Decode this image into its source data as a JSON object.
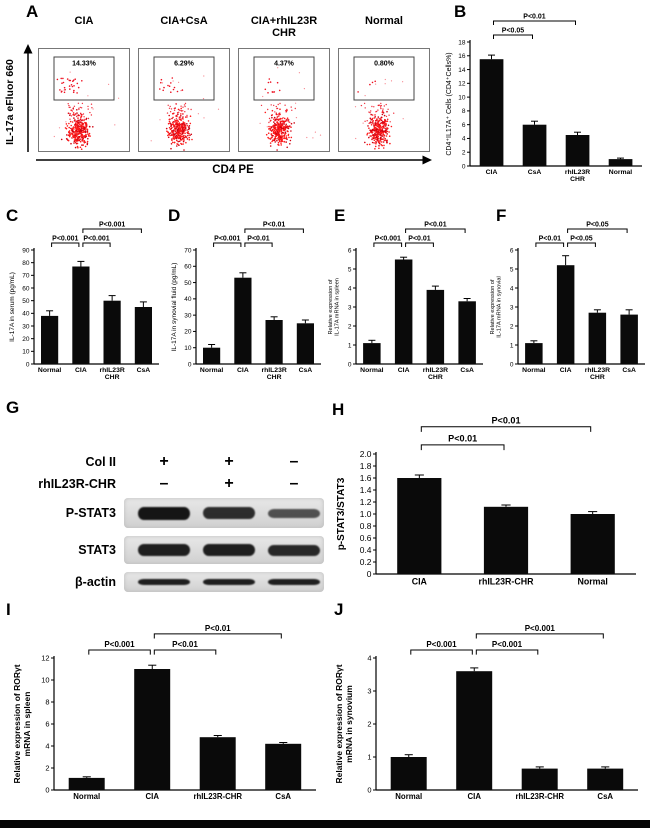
{
  "panel_a": {
    "label": "A",
    "ylabel": "IL-17a eFluor 660",
    "xlabel": "CD4 PE",
    "plots": [
      {
        "title": "CIA",
        "gate_pct": "14.33%",
        "gated_dots": 30
      },
      {
        "title": "CIA+CsA",
        "gate_pct": "6.29%",
        "gated_dots": 14
      },
      {
        "title": "CIA+rhIL23R\nCHR",
        "gate_pct": "4.37%",
        "gated_dots": 10
      },
      {
        "title": "Normal",
        "gate_pct": "0.80%",
        "gated_dots": 4
      }
    ]
  },
  "panel_g": {
    "label": "G",
    "condition_rows": [
      {
        "name": "Col II",
        "values": [
          "+",
          "+",
          "–"
        ]
      },
      {
        "name": "rhIL23R-CHR",
        "values": [
          "–",
          "+",
          "–"
        ]
      }
    ],
    "blots": [
      {
        "name": "P-STAT3",
        "bands": [
          {
            "h": 13,
            "o": 1
          },
          {
            "h": 12,
            "o": 0.88
          },
          {
            "h": 9,
            "o": 0.7
          }
        ]
      },
      {
        "name": "STAT3",
        "bands": [
          {
            "h": 12,
            "o": 0.95
          },
          {
            "h": 12,
            "o": 0.95
          },
          {
            "h": 11,
            "o": 0.9
          }
        ]
      },
      {
        "name": "β-actin",
        "bands": [
          {
            "h": 6,
            "o": 0.95
          },
          {
            "h": 6,
            "o": 0.95
          },
          {
            "h": 6,
            "o": 0.95
          }
        ]
      }
    ]
  },
  "chart_data": [
    {
      "panel": "B",
      "type": "bar",
      "categories": [
        "CIA",
        "CsA",
        "rhIL23R\nCHR",
        "Normal"
      ],
      "values": [
        15.5,
        6.0,
        4.5,
        1.0
      ],
      "errors": [
        0.6,
        0.5,
        0.4,
        0.15
      ],
      "title": "",
      "xlabel": "",
      "ylabel": "CD4⁺IL17A⁺ Cells (CD4⁺Cells%)",
      "ylim": [
        0,
        18
      ],
      "ytick_step": 2,
      "brackets": [
        {
          "from": 0,
          "to": 1,
          "label": "P<0.05",
          "level": 0
        },
        {
          "from": 0,
          "to": 2,
          "label": "P<0.01",
          "level": 1
        }
      ]
    },
    {
      "panel": "C",
      "type": "bar",
      "categories": [
        "Normal",
        "CIA",
        "rhIL23R\nCHR",
        "CsA"
      ],
      "values": [
        38,
        77,
        50,
        45
      ],
      "errors": [
        4,
        4,
        4,
        4
      ],
      "title": "",
      "xlabel": "",
      "ylabel": "IL-17A in serum (pg/mL)",
      "ylim": [
        0,
        90
      ],
      "ytick_step": 10,
      "brackets": [
        {
          "from": 0,
          "to": 1,
          "label": "P<0.001",
          "level": 0
        },
        {
          "from": 1,
          "to": 2,
          "label": "P<0.001",
          "level": 0
        },
        {
          "from": 1,
          "to": 3,
          "label": "P<0.001",
          "level": 1
        }
      ]
    },
    {
      "panel": "D",
      "type": "bar",
      "categories": [
        "Normal",
        "CIA",
        "rhIL23R\nCHR",
        "CsA"
      ],
      "values": [
        10,
        53,
        27,
        25
      ],
      "errors": [
        2,
        3,
        2,
        2
      ],
      "title": "",
      "xlabel": "",
      "ylabel": "IL-17A in synovial fluid (pg/mL)",
      "ylim": [
        0,
        70
      ],
      "ytick_step": 10,
      "brackets": [
        {
          "from": 0,
          "to": 1,
          "label": "P<0.001",
          "level": 0
        },
        {
          "from": 1,
          "to": 2,
          "label": "P<0.01",
          "level": 0
        },
        {
          "from": 1,
          "to": 3,
          "label": "P<0.01",
          "level": 1
        }
      ]
    },
    {
      "panel": "E",
      "type": "bar",
      "categories": [
        "Normal",
        "CIA",
        "rhIL23R\nCHR",
        "CsA"
      ],
      "values": [
        1.1,
        5.5,
        3.9,
        3.3
      ],
      "errors": [
        0.15,
        0.12,
        0.2,
        0.15
      ],
      "title": "",
      "xlabel": "",
      "ylabel": "Relative expression of\nIL-17A mRNA in spleen",
      "ylim": [
        0,
        6
      ],
      "ytick_step": 1,
      "brackets": [
        {
          "from": 0,
          "to": 1,
          "label": "P<0.001",
          "level": 0
        },
        {
          "from": 1,
          "to": 2,
          "label": "P<0.01",
          "level": 0
        },
        {
          "from": 1,
          "to": 3,
          "label": "P<0.01",
          "level": 1
        }
      ]
    },
    {
      "panel": "F",
      "type": "bar",
      "categories": [
        "Normal",
        "CIA",
        "rhIL23R\nCHR",
        "CsA"
      ],
      "values": [
        1.1,
        5.2,
        2.7,
        2.6
      ],
      "errors": [
        0.12,
        0.5,
        0.15,
        0.25
      ],
      "title": "",
      "xlabel": "",
      "ylabel": "Relative expression of\nIL-17A mRNA in synovial",
      "ylim": [
        0,
        6
      ],
      "ytick_step": 1,
      "brackets": [
        {
          "from": 0,
          "to": 1,
          "label": "P<0.01",
          "level": 0
        },
        {
          "from": 1,
          "to": 2,
          "label": "P<0.05",
          "level": 0
        },
        {
          "from": 1,
          "to": 3,
          "label": "P<0.05",
          "level": 1
        }
      ]
    },
    {
      "panel": "H",
      "type": "bar",
      "categories": [
        "CIA",
        "rhIL23R-CHR",
        "Normal"
      ],
      "values": [
        1.6,
        1.12,
        1.0
      ],
      "errors": [
        0.05,
        0.03,
        0.04
      ],
      "title": "",
      "xlabel": "",
      "ylabel": "p-STAT3/STAT3",
      "ylim": [
        0,
        2
      ],
      "ytick_step": 0.2,
      "brackets": [
        {
          "from": 0,
          "to": 1,
          "label": "P<0.01",
          "level": 0
        },
        {
          "from": 0,
          "to": 2,
          "label": "P<0.01",
          "level": 1
        }
      ]
    },
    {
      "panel": "I",
      "type": "bar",
      "categories": [
        "Normal",
        "CIA",
        "rhIL23R-CHR",
        "CsA"
      ],
      "values": [
        1.1,
        11.0,
        4.8,
        4.2
      ],
      "errors": [
        0.1,
        0.35,
        0.15,
        0.12
      ],
      "title": "",
      "xlabel": "",
      "ylabel": "Relative expression of RORγt\nmRNA in spleen",
      "ylim": [
        0,
        12
      ],
      "ytick_step": 2,
      "brackets": [
        {
          "from": 0,
          "to": 1,
          "label": "P<0.001",
          "level": 0
        },
        {
          "from": 1,
          "to": 2,
          "label": "P<0.01",
          "level": 0
        },
        {
          "from": 1,
          "to": 3,
          "label": "P<0.01",
          "level": 1
        }
      ]
    },
    {
      "panel": "J",
      "type": "bar",
      "categories": [
        "Normal",
        "CIA",
        "rhIL23R-CHR",
        "CsA"
      ],
      "values": [
        1.0,
        3.6,
        0.65,
        0.65
      ],
      "errors": [
        0.07,
        0.1,
        0.05,
        0.05
      ],
      "title": "",
      "xlabel": "",
      "ylabel": "Relative expression of RORγt\nmRNA in synovium",
      "ylim": [
        0,
        4
      ],
      "ytick_step": 1,
      "brackets": [
        {
          "from": 0,
          "to": 1,
          "label": "P<0.001",
          "level": 0
        },
        {
          "from": 1,
          "to": 2,
          "label": "P<0.001",
          "level": 0
        },
        {
          "from": 1,
          "to": 3,
          "label": "P<0.001",
          "level": 1
        }
      ]
    }
  ]
}
